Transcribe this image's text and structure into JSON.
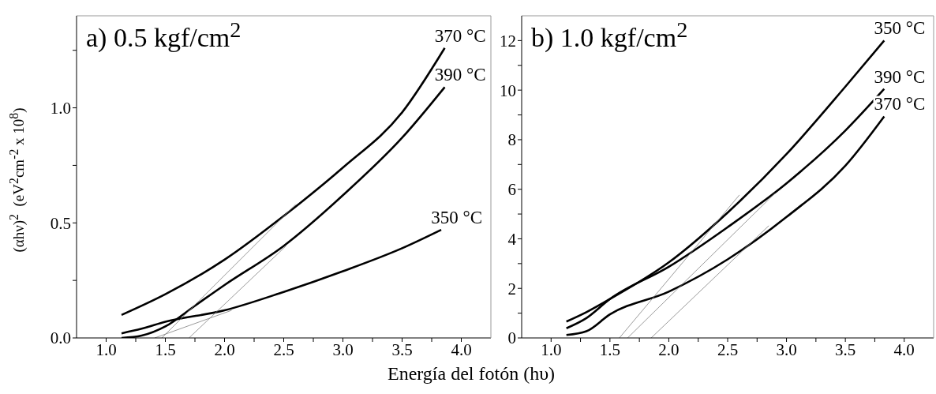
{
  "chart_data": [
    {
      "type": "line",
      "title": "a) 0.5 kgf/cm$^{2}$",
      "xlabel": "Energía del fotón (hυ)",
      "ylabel": "(αhν)$^{2}$  (eV$^{2}$cm$^{-2}$ x 10$^{8}$)",
      "xlim": [
        0.75,
        4.25
      ],
      "xticks": [
        {
          "value": 1,
          "label": "1.0"
        },
        {
          "value": 1.25,
          "label": null
        },
        1.5,
        {
          "value": 1.75,
          "label": null
        },
        {
          "value": 2,
          "label": "2.0"
        },
        {
          "value": 2.25,
          "label": null
        },
        2.5,
        {
          "value": 2.75,
          "label": null
        },
        {
          "value": 3,
          "label": "3.0"
        },
        {
          "value": 3.25,
          "label": null
        },
        3.5,
        {
          "value": 3.75,
          "label": null
        },
        {
          "value": 4,
          "label": "4.0"
        }
      ],
      "ylim": [
        0,
        1.4
      ],
      "yticks": [
        {
          "value": 0,
          "label": "0.0"
        },
        {
          "value": 0.25,
          "label": null
        },
        0.5,
        {
          "value": 0.75,
          "label": null
        },
        {
          "value": 1,
          "label": "1.0"
        },
        {
          "value": 1.25,
          "label": null
        }
      ],
      "series": [
        {
          "name": "370 °C",
          "color": "#000000",
          "x": [
            1.13,
            1.5,
            2.0,
            2.5,
            3.0,
            3.5,
            3.86
          ],
          "values": [
            0.1,
            0.19,
            0.34,
            0.53,
            0.74,
            0.98,
            1.26
          ]
        },
        {
          "name": "390 °C",
          "color": "#000000",
          "x": [
            1.13,
            1.3,
            1.5,
            1.75,
            2.0,
            2.5,
            3.0,
            3.5,
            3.86
          ],
          "values": [
            0.0,
            0.01,
            0.05,
            0.14,
            0.23,
            0.4,
            0.62,
            0.87,
            1.09
          ]
        },
        {
          "name": "350 °C",
          "color": "#000000",
          "x": [
            1.13,
            1.3,
            1.5,
            2.0,
            2.5,
            3.0,
            3.5,
            3.83
          ],
          "values": [
            0.02,
            0.04,
            0.07,
            0.12,
            0.2,
            0.29,
            0.39,
            0.47
          ]
        },
        {
          "type": "line",
          "color": "#808080",
          "x": [
            1.47,
            2.6
          ],
          "values": [
            0.0,
            0.58
          ]
        },
        {
          "type": "line",
          "color": "#808080",
          "x": [
            1.7,
            2.52
          ],
          "values": [
            0.0,
            0.4
          ]
        },
        {
          "type": "line",
          "color": "#808080",
          "x": [
            1.41,
            2.06
          ],
          "values": [
            0.0,
            0.12
          ]
        }
      ]
    },
    {
      "type": "line",
      "title": "b) 1.0 kgf/cm$^{2}$",
      "xlim": [
        0.75,
        4.25
      ],
      "xticks": [
        {
          "value": 1,
          "label": "1.0"
        },
        {
          "value": 1.25,
          "label": null
        },
        1.5,
        {
          "value": 1.75,
          "label": null
        },
        {
          "value": 2,
          "label": "2.0"
        },
        {
          "value": 2.25,
          "label": null
        },
        2.5,
        {
          "value": 2.75,
          "label": null
        },
        {
          "value": 3,
          "label": "3.0"
        },
        {
          "value": 3.25,
          "label": null
        },
        3.5,
        {
          "value": 3.75,
          "label": null
        },
        {
          "value": 4,
          "label": "4.0"
        }
      ],
      "ylim": [
        0,
        13
      ],
      "yticks": [
        0,
        {
          "value": 1,
          "label": null
        },
        2,
        {
          "value": 3,
          "label": null
        },
        4,
        {
          "value": 5,
          "label": null
        },
        6,
        {
          "value": 7,
          "label": null
        },
        8,
        {
          "value": 9,
          "label": null
        },
        10,
        {
          "value": 11,
          "label": null
        },
        12
      ],
      "series": [
        {
          "name": "350 °C",
          "color": "#000000",
          "x": [
            1.13,
            1.3,
            1.5,
            2.0,
            2.5,
            3.0,
            3.5,
            3.83
          ],
          "values": [
            0.66,
            1.04,
            1.57,
            3.05,
            5.06,
            7.42,
            10.14,
            12.0
          ]
        },
        {
          "name": "390 °C",
          "color": "#000000",
          "x": [
            1.13,
            1.3,
            1.5,
            2.0,
            2.5,
            3.0,
            3.5,
            3.83
          ],
          "values": [
            0.39,
            0.8,
            1.57,
            2.87,
            4.47,
            6.24,
            8.37,
            10.05
          ]
        },
        {
          "name": "370 °C",
          "color": "#000000",
          "x": [
            1.13,
            1.3,
            1.5,
            2.0,
            2.5,
            3.0,
            3.5,
            3.83
          ],
          "values": [
            0.12,
            0.27,
            0.95,
            1.87,
            3.17,
            4.88,
            6.95,
            8.94
          ]
        },
        {
          "type": "line",
          "color": "#808080",
          "x": [
            1.58,
            2.6
          ],
          "values": [
            0.0,
            5.77
          ]
        },
        {
          "type": "line",
          "color": "#808080",
          "x": [
            1.65,
            2.9
          ],
          "values": [
            0.0,
            5.83
          ]
        },
        {
          "type": "line",
          "color": "#808080",
          "x": [
            1.85,
            2.85
          ],
          "values": [
            0.0,
            4.53
          ]
        }
      ]
    }
  ]
}
